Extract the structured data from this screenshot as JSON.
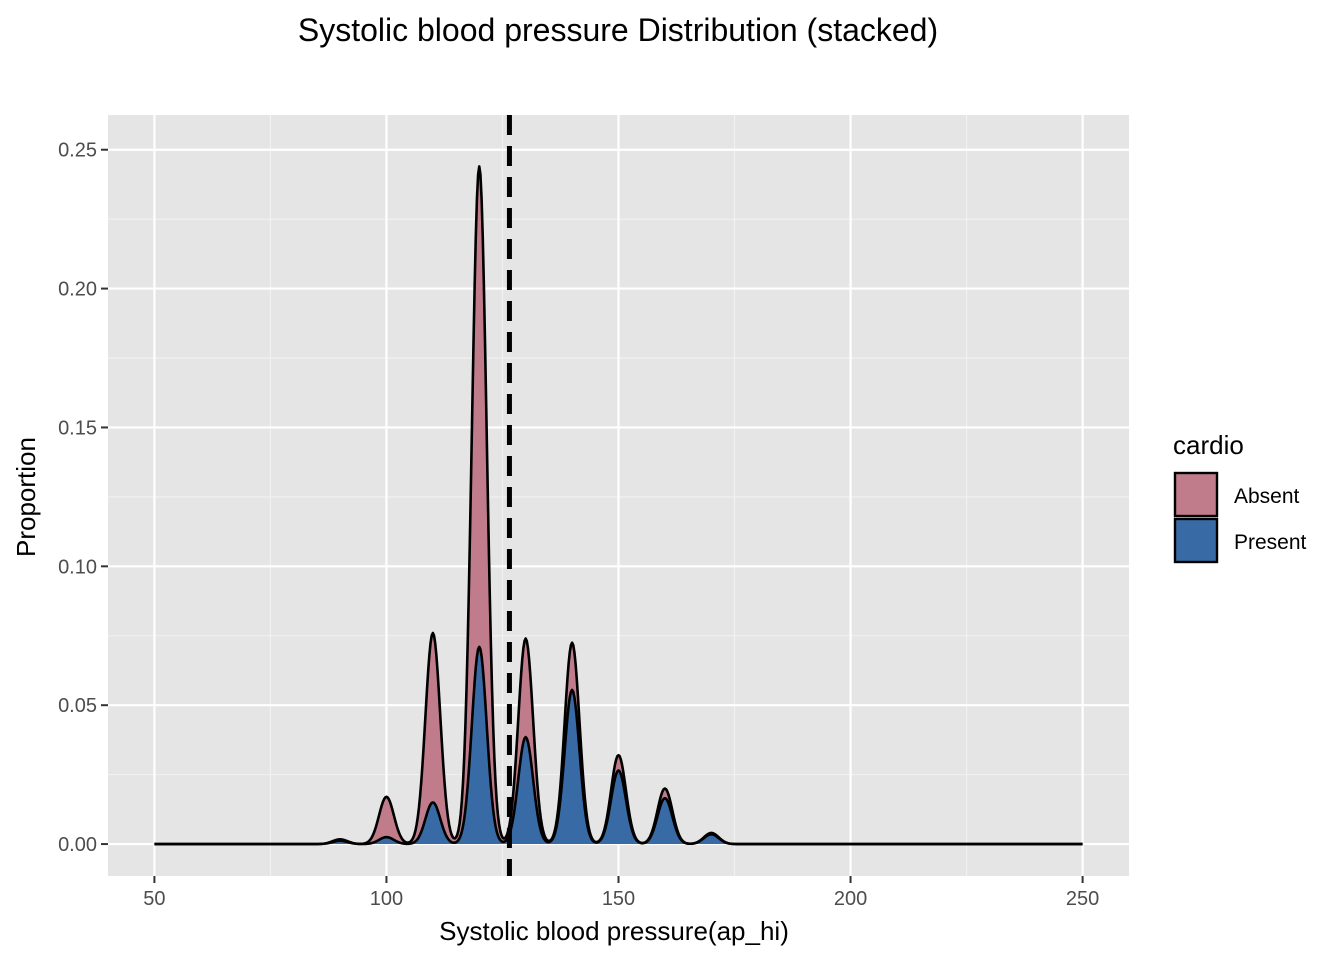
{
  "chart_data": {
    "type": "area",
    "stacked": true,
    "title": "Systolic blood pressure Distribution (stacked)",
    "xlabel": "Systolic blood pressure(ap_hi)",
    "ylabel": "Proportion",
    "xlim": [
      40,
      260
    ],
    "ylim": [
      -0.0115,
      0.2625
    ],
    "x_ticks": [
      50,
      100,
      150,
      200,
      250
    ],
    "x_tick_labels": [
      "50",
      "100",
      "150",
      "200",
      "250"
    ],
    "y_ticks": [
      0,
      0.05,
      0.1,
      0.15,
      0.2,
      0.25
    ],
    "y_tick_labels": [
      "0.00",
      "0.05",
      "0.10",
      "0.15",
      "0.20",
      "0.25"
    ],
    "grid": true,
    "legend": {
      "title": "cardio",
      "position": "right"
    },
    "series": [
      {
        "name": "Absent",
        "color": "#c17c8c",
        "peaks": [
          [
            90,
            0.0005
          ],
          [
            100,
            0.0145
          ],
          [
            110,
            0.061
          ],
          [
            120,
            0.173
          ],
          [
            130,
            0.0355
          ],
          [
            140,
            0.017
          ],
          [
            150,
            0.0055
          ],
          [
            160,
            0.0035
          ],
          [
            170,
            0.0005
          ]
        ]
      },
      {
        "name": "Present",
        "color": "#386ba5",
        "peaks": [
          [
            90,
            0.0012
          ],
          [
            100,
            0.0025
          ],
          [
            110,
            0.015
          ],
          [
            120,
            0.071
          ],
          [
            130,
            0.0385
          ],
          [
            140,
            0.0555
          ],
          [
            150,
            0.0265
          ],
          [
            160,
            0.0165
          ],
          [
            170,
            0.0035
          ]
        ]
      }
    ],
    "peak_width_sd": 1.6,
    "domain": [
      50,
      250
    ],
    "vline": {
      "x": 126.5,
      "style": "dashed",
      "color": "#000000"
    }
  }
}
